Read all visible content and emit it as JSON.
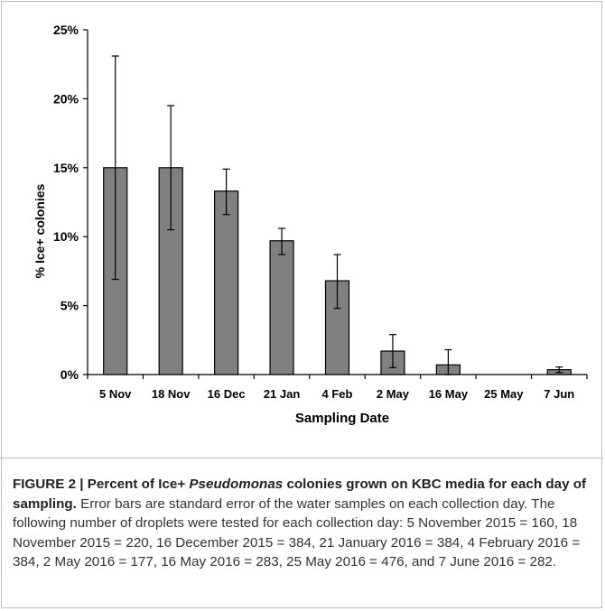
{
  "chart_data": {
    "type": "bar",
    "title": "",
    "xlabel": "Sampling Date",
    "ylabel": "% Ice+ colonies",
    "ylim": [
      0,
      25
    ],
    "yticks": [
      "0%",
      "5%",
      "10%",
      "15%",
      "20%",
      "25%"
    ],
    "ytick_values": [
      0,
      5,
      10,
      15,
      20,
      25
    ],
    "categories": [
      "5 Nov",
      "18 Nov",
      "16 Dec",
      "21 Jan",
      "4 Feb",
      "2 May",
      "16 May",
      "25 May",
      "7 Jun"
    ],
    "values": [
      15.0,
      15.0,
      13.3,
      9.7,
      6.8,
      1.7,
      0.7,
      0,
      0.35
    ],
    "error_upper": [
      23.1,
      19.5,
      14.9,
      10.6,
      8.7,
      2.9,
      1.8,
      0,
      0.55
    ],
    "error_lower": [
      6.9,
      10.5,
      11.6,
      8.7,
      4.8,
      0.5,
      0,
      0,
      0.15
    ],
    "grid": false,
    "bar_color": "#808080"
  },
  "caption": {
    "label": "FIGURE 2 | Percent of Ice+ ",
    "label_italic": "Pseudomonas",
    "label_rest": " colonies grown on KBC media for each day of sampling.",
    "text": " Error bars are standard error of the water samples on each collection day. The following number of droplets were tested for each collection day: 5 November 2015 = 160, 18 November 2015 = 220, 16 December 2015 = 384, 21 January 2016 = 384, 4 February 2016 = 384, 2 May 2016 = 177, 16 May 2016 = 283, 25 May 2016 = 476, and 7 June 2016 = 282."
  }
}
